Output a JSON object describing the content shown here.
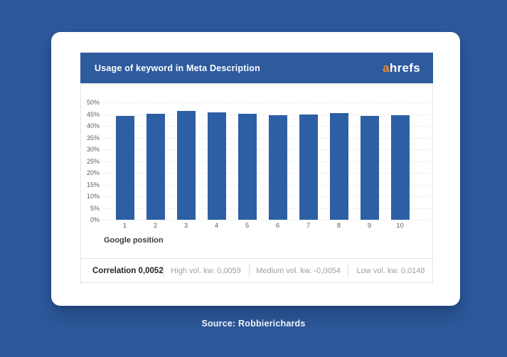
{
  "page": {
    "source_label": "Source: Robbierichards",
    "background_color": "#2e5a9c"
  },
  "card": {
    "header": {
      "title": "Usage of keyword in Meta Description",
      "logo_prefix": "a",
      "logo_rest": "hrefs",
      "logo_accent_color": "#ff8c1a",
      "header_color": "#2e5a9e"
    },
    "stats": {
      "correlation_label": "Correlation",
      "correlation_value": "0,0052",
      "high_label": "High vol. kw.",
      "high_value": "0,0059",
      "medium_label": "Medium vol. kw.",
      "medium_value": "-0,0054",
      "low_label": "Low vol. kw.",
      "low_value": "0,0148"
    }
  },
  "chart_data": {
    "type": "bar",
    "title": "Usage of keyword in Meta Description",
    "categories": [
      "1",
      "2",
      "3",
      "4",
      "5",
      "6",
      "7",
      "8",
      "9",
      "10"
    ],
    "values": [
      44.3,
      45.3,
      46.3,
      45.9,
      45.2,
      44.4,
      44.8,
      45.6,
      44.2,
      44.4
    ],
    "xlabel": "Google position",
    "ylabel": "",
    "ylim": [
      0,
      50
    ],
    "ytick_step": 5,
    "ytick_suffix": "%",
    "grid": true,
    "legend_position": "none",
    "bar_color": "#2d5fa5"
  }
}
